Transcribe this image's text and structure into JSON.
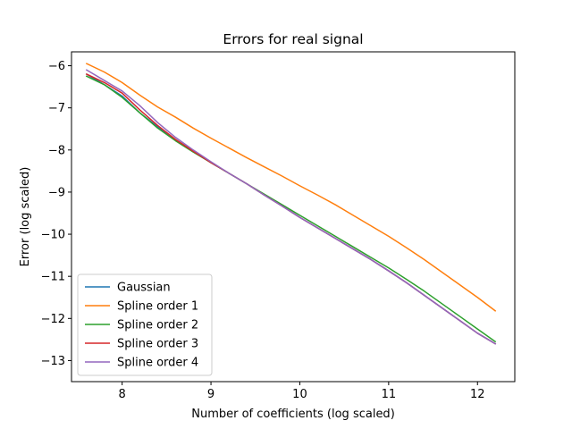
{
  "chart_data": {
    "type": "line",
    "title": "Errors for real signal",
    "xlabel": "Number of coefficients (log scaled)",
    "ylabel": "Error (log scaled)",
    "xlim": [
      7.43,
      12.42
    ],
    "ylim": [
      -13.5,
      -5.67
    ],
    "xticks": [
      8,
      9,
      10,
      11,
      12
    ],
    "yticks": [
      -13,
      -12,
      -11,
      -10,
      -9,
      -8,
      -7,
      -6
    ],
    "xtick_labels": [
      "8",
      "9",
      "10",
      "11",
      "12"
    ],
    "ytick_labels": [
      "−13",
      "−12",
      "−11",
      "−10",
      "−9",
      "−8",
      "−7",
      "−6"
    ],
    "grid": false,
    "legend_position": "lower-left",
    "series": [
      {
        "name": "Gaussian",
        "color": "#1f77b4",
        "x": [
          7.6,
          7.8,
          8.0,
          8.2,
          8.4,
          8.6,
          8.8,
          9.0,
          9.2,
          9.4,
          9.6,
          9.8,
          10.0,
          10.2,
          10.4,
          10.6,
          10.8,
          11.0,
          11.2,
          11.4,
          11.6,
          11.8,
          12.0,
          12.2
        ],
        "y": [
          -6.2,
          -6.45,
          -6.72,
          -7.12,
          -7.45,
          -7.75,
          -8.03,
          -8.3,
          -8.55,
          -8.8,
          -9.07,
          -9.33,
          -9.6,
          -9.85,
          -10.1,
          -10.35,
          -10.6,
          -10.87,
          -11.15,
          -11.45,
          -11.75,
          -12.05,
          -12.35,
          -12.6
        ]
      },
      {
        "name": "Spline order 1",
        "color": "#ff7f0e",
        "x": [
          7.6,
          7.8,
          8.0,
          8.2,
          8.4,
          8.6,
          8.8,
          9.0,
          9.2,
          9.4,
          9.6,
          9.8,
          10.0,
          10.2,
          10.4,
          10.6,
          10.8,
          11.0,
          11.2,
          11.4,
          11.6,
          11.8,
          12.0,
          12.2
        ],
        "y": [
          -5.95,
          -6.15,
          -6.4,
          -6.7,
          -6.98,
          -7.22,
          -7.48,
          -7.72,
          -7.95,
          -8.18,
          -8.4,
          -8.62,
          -8.85,
          -9.07,
          -9.3,
          -9.55,
          -9.8,
          -10.05,
          -10.32,
          -10.6,
          -10.9,
          -11.2,
          -11.5,
          -11.82
        ]
      },
      {
        "name": "Spline order 2",
        "color": "#2ca02c",
        "x": [
          7.6,
          7.8,
          8.0,
          8.2,
          8.4,
          8.6,
          8.8,
          9.0,
          9.2,
          9.4,
          9.6,
          9.8,
          10.0,
          10.2,
          10.4,
          10.6,
          10.8,
          11.0,
          11.2,
          11.4,
          11.6,
          11.8,
          12.0,
          12.2
        ],
        "y": [
          -6.25,
          -6.45,
          -6.75,
          -7.12,
          -7.48,
          -7.78,
          -8.05,
          -8.3,
          -8.55,
          -8.8,
          -9.05,
          -9.3,
          -9.55,
          -9.8,
          -10.05,
          -10.3,
          -10.55,
          -10.8,
          -11.07,
          -11.35,
          -11.65,
          -11.95,
          -12.25,
          -12.55
        ]
      },
      {
        "name": "Spline order 3",
        "color": "#d62728",
        "x": [
          7.6,
          7.8,
          8.0,
          8.2,
          8.4,
          8.6,
          8.8,
          9.0,
          9.2,
          9.4,
          9.6,
          9.8,
          10.0,
          10.2,
          10.4,
          10.6,
          10.8,
          11.0,
          11.2,
          11.4,
          11.6,
          11.8,
          12.0,
          12.2
        ],
        "y": [
          -6.2,
          -6.4,
          -6.65,
          -7.05,
          -7.42,
          -7.75,
          -8.03,
          -8.3,
          -8.55,
          -8.8,
          -9.07,
          -9.33,
          -9.6,
          -9.85,
          -10.1,
          -10.35,
          -10.6,
          -10.87,
          -11.15,
          -11.45,
          -11.75,
          -12.05,
          -12.35,
          -12.6
        ]
      },
      {
        "name": "Spline order 4",
        "color": "#9467bd",
        "x": [
          7.6,
          7.8,
          8.0,
          8.2,
          8.4,
          8.6,
          8.8,
          9.0,
          9.2,
          9.4,
          9.6,
          9.8,
          10.0,
          10.2,
          10.4,
          10.6,
          10.8,
          11.0,
          11.2,
          11.4,
          11.6,
          11.8,
          12.0,
          12.2
        ],
        "y": [
          -6.1,
          -6.35,
          -6.6,
          -6.95,
          -7.35,
          -7.7,
          -8.0,
          -8.28,
          -8.55,
          -8.8,
          -9.07,
          -9.33,
          -9.6,
          -9.85,
          -10.1,
          -10.35,
          -10.6,
          -10.87,
          -11.15,
          -11.45,
          -11.75,
          -12.05,
          -12.35,
          -12.6
        ]
      }
    ]
  }
}
